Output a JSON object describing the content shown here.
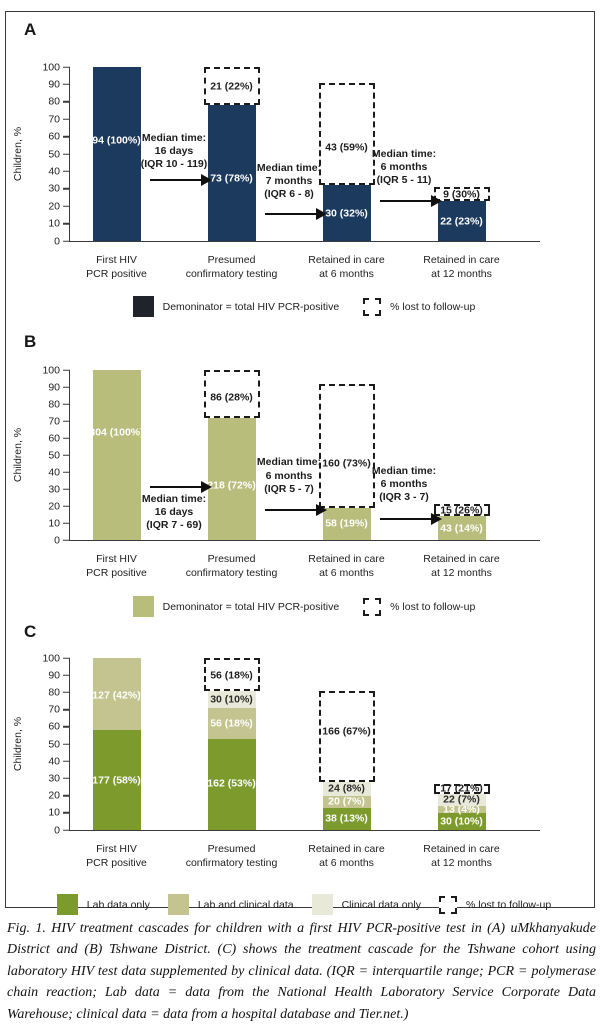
{
  "figure": {
    "caption": "Fig. 1. HIV treatment cascades for children with a first HIV PCR-positive test in (A) uMkhanyakude District and (B) Tshwane District. (C) shows the treatment cascade for the Tshwane cohort using laboratory HIV test data supplemented by clinical data. (IQR = interquartile range; PCR = polymerase chain reaction; Lab data = data from the National Health Laboratory Service Corporate Data Warehouse; clinical data = data from a hospital database and Tier.net.)"
  },
  "colors": {
    "navy": "#1c3a5e",
    "khaki": "#b9bd7c",
    "olive_dark": "#7d9b2d",
    "olive_medium": "#c3c48f",
    "pale": "#e9e9da",
    "legend_black": "#20242a"
  },
  "chart_data": [
    {
      "panel": "A",
      "type": "bar",
      "ylabel": "Children, %",
      "ylim": [
        0,
        100
      ],
      "yticks": [
        0,
        10,
        20,
        30,
        40,
        50,
        60,
        70,
        80,
        90,
        100
      ],
      "grid": false,
      "bar_color": "#1c3a5e",
      "categories": [
        [
          "First HIV",
          "PCR positive"
        ],
        [
          "Presumed",
          "confirmatory testing"
        ],
        [
          "Retained in care",
          "at 6 months"
        ],
        [
          "Retained in care",
          "at 12 months"
        ]
      ],
      "bars": [
        {
          "segments": [
            {
              "value": 100,
              "label": "94 (100%)",
              "label_at": 58,
              "lc": "#ffffff"
            }
          ]
        },
        {
          "segments": [
            {
              "value": 78,
              "label": "73 (78%)",
              "label_at": 36,
              "lc": "#ffffff"
            }
          ],
          "lost": {
            "from": 78,
            "to": 100,
            "label": "21 (22%)",
            "label_at": 89
          }
        },
        {
          "segments": [
            {
              "value": 32,
              "label": "30 (32%)",
              "label_at": 16,
              "lc": "#ffffff"
            }
          ],
          "lost": {
            "from": 32,
            "to": 91,
            "label": "43 (59%)",
            "label_at": 54
          }
        },
        {
          "segments": [
            {
              "value": 23,
              "label": "22 (23%)",
              "label_at": 11,
              "lc": "#ffffff"
            }
          ],
          "lost": {
            "from": 23,
            "to": 31,
            "label": "9 (30%)",
            "label_at": 26.5
          }
        }
      ],
      "annotations": [
        {
          "after": 0,
          "lines": [
            "Median time:",
            "16 days",
            "(IQR 10 - 119)"
          ],
          "arrow_y": 35,
          "text_bottom": 40
        },
        {
          "after": 1,
          "lines": [
            "Median time:",
            "7 months",
            "(IQR 6 - 8)"
          ],
          "arrow_y": 15.5,
          "text_bottom": 23
        },
        {
          "after": 2,
          "lines": [
            "Median time:",
            "6 months",
            "(IQR 5 - 11)"
          ],
          "arrow_y": 23,
          "text_bottom": 31
        }
      ],
      "legend": [
        {
          "type": "solid",
          "color": "#20242a",
          "label": "Demoninator = total HIV PCR-positive"
        },
        {
          "type": "dashed",
          "label": "% lost to follow-up"
        }
      ]
    },
    {
      "panel": "B",
      "type": "bar",
      "ylabel": "Children, %",
      "ylim": [
        0,
        100
      ],
      "yticks": [
        0,
        10,
        20,
        30,
        40,
        50,
        60,
        70,
        80,
        90,
        100
      ],
      "grid": false,
      "bar_color": "#b9bd7c",
      "categories": [
        [
          "First HIV",
          "PCR positive"
        ],
        [
          "Presumed",
          "confirmatory testing"
        ],
        [
          "Retained in care",
          "at 6 months"
        ],
        [
          "Retained in care",
          "at 12 months"
        ]
      ],
      "bars": [
        {
          "segments": [
            {
              "value": 100,
              "label": "304 (100%)",
              "label_at": 63,
              "lc": "#ffffff"
            }
          ]
        },
        {
          "segments": [
            {
              "value": 72,
              "label": "218 (72%)",
              "label_at": 32,
              "lc": "#ffffff"
            }
          ],
          "lost": {
            "from": 72,
            "to": 100,
            "label": "86 (28%)",
            "label_at": 84
          }
        },
        {
          "segments": [
            {
              "value": 19,
              "label": "58 (19%)",
              "label_at": 9.5,
              "lc": "#ffffff"
            }
          ],
          "lost": {
            "from": 19,
            "to": 92,
            "label": "160 (73%)",
            "label_at": 45
          }
        },
        {
          "segments": [
            {
              "value": 14,
              "label": "43 (14%)",
              "label_at": 7,
              "lc": "#ffffff"
            }
          ],
          "lost": {
            "from": 14,
            "to": 21,
            "label": "15 (26%)",
            "label_at": 17.5
          }
        }
      ],
      "annotations": [
        {
          "after": 0,
          "lines": [
            "Median time:",
            "16 days",
            "(IQR 7 - 69)"
          ],
          "arrow_y": 31,
          "text_bottom": 4.5
        },
        {
          "after": 1,
          "lines": [
            "Median time:",
            "6 months",
            "(IQR 5 - 7)"
          ],
          "arrow_y": 17.5,
          "text_bottom": 26
        },
        {
          "after": 2,
          "lines": [
            "Median time:",
            "6 months",
            "(IQR 3 - 7)"
          ],
          "arrow_y": 12.5,
          "text_bottom": 21
        }
      ],
      "legend": [
        {
          "type": "solid",
          "color": "#b9bd7c",
          "label": "Demoninator = total HIV PCR-positive"
        },
        {
          "type": "dashed",
          "label": "% lost to follow-up"
        }
      ]
    },
    {
      "panel": "C",
      "type": "stacked-bar",
      "ylabel": "Children, %",
      "ylim": [
        0,
        100
      ],
      "yticks": [
        0,
        10,
        20,
        30,
        40,
        50,
        60,
        70,
        80,
        90,
        100
      ],
      "grid": false,
      "bar_color": "#7d9b2d",
      "categories": [
        [
          "First HIV",
          "PCR positive"
        ],
        [
          "Presumed",
          "confirmatory testing"
        ],
        [
          "Retained in care",
          "at 6 months"
        ],
        [
          "Retained in care",
          "at 12 months"
        ]
      ],
      "bars": [
        {
          "segments": [
            {
              "value": 58,
              "color": "#7d9b2d",
              "label": "177 (58%)",
              "label_at": 29,
              "lc": "#ffffff"
            },
            {
              "value": 42,
              "color": "#c3c48f",
              "label": "127 (42%)",
              "label_at": 78,
              "lc": "#ffffff"
            }
          ]
        },
        {
          "segments": [
            {
              "value": 53,
              "color": "#7d9b2d",
              "label": "162 (53%)",
              "label_at": 27,
              "lc": "#ffffff"
            },
            {
              "value": 18,
              "color": "#c3c48f",
              "label": "56 (18%)",
              "label_at": 62,
              "lc": "#ffffff"
            },
            {
              "value": 10,
              "color": "#e9e9da",
              "label": "30 (10%)",
              "label_at": 76,
              "lc": "#2b2b2b"
            }
          ],
          "lost": {
            "from": 81,
            "to": 100,
            "label": "56 (18%)",
            "label_at": 90
          }
        },
        {
          "segments": [
            {
              "value": 13,
              "color": "#7d9b2d",
              "label": "38 (13%)",
              "label_at": 6.5,
              "lc": "#ffffff"
            },
            {
              "value": 7,
              "color": "#c3c48f",
              "label": "20 (7%)",
              "label_at": 16.5,
              "lc": "#ffffff"
            },
            {
              "value": 8,
              "color": "#e9e9da",
              "label": "24 (8%)",
              "label_at": 24,
              "lc": "#2b2b2b"
            }
          ],
          "lost": {
            "from": 28,
            "to": 81,
            "label": "166 (67%)",
            "label_at": 57
          }
        },
        {
          "segments": [
            {
              "value": 10,
              "color": "#7d9b2d",
              "label": "30 (10%)",
              "label_at": 5,
              "lc": "#ffffff"
            },
            {
              "value": 4,
              "color": "#c3c48f",
              "label": "13 (4%)",
              "label_at": 12,
              "lc": "#ffffff"
            },
            {
              "value": 7,
              "color": "#e9e9da",
              "label": "22 (7%)",
              "label_at": 17.5,
              "lc": "#2b2b2b"
            }
          ],
          "lost": {
            "from": 21,
            "to": 27,
            "label": "17 (21%)",
            "label_at": 24
          }
        }
      ],
      "annotations": [],
      "legend": [
        {
          "type": "solid",
          "color": "#7d9b2d",
          "label": "Lab data only"
        },
        {
          "type": "solid",
          "color": "#c3c48f",
          "label": "Lab and clinical data"
        },
        {
          "type": "solid",
          "color": "#e9e9da",
          "label": "Clinical data only"
        },
        {
          "type": "dashed",
          "label": "% lost to follow-up"
        }
      ]
    }
  ]
}
